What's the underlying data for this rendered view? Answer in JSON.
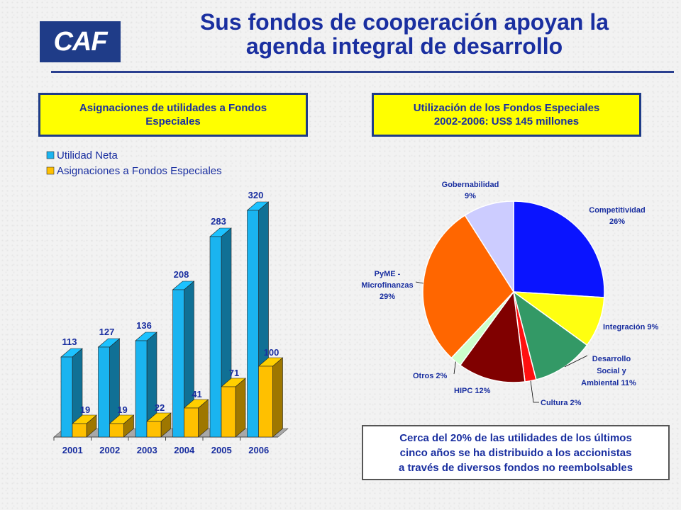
{
  "header": {
    "logo_text": "CAF",
    "title_line1": "Sus fondos de cooperación apoyan la",
    "title_line2": "agenda integral de desarrollo"
  },
  "left_panel": {
    "box_line1": "Asignaciones de utilidades a Fondos",
    "box_line2": "Especiales"
  },
  "right_panel": {
    "box_line1": "Utilización de los Fondos Especiales",
    "box_line2": "2002-2006: US$ 145 millones"
  },
  "note": {
    "line1": "Cerca del 20% de las utilidades de los últimos",
    "line2": "cinco años se ha distribuido a los accionistas",
    "line3": "a través de diversos fondos no reembolsables"
  },
  "chart_data": [
    {
      "type": "bar",
      "categories": [
        "2001",
        "2002",
        "2003",
        "2004",
        "2005",
        "2006"
      ],
      "series": [
        {
          "name": "Utilidad Neta",
          "values": [
            113,
            127,
            136,
            208,
            283,
            320
          ],
          "color": "#1ab4f0"
        },
        {
          "name": "Asignaciones a Fondos Especiales",
          "values": [
            19,
            19,
            22,
            41,
            71,
            100
          ],
          "color": "#ffc000"
        }
      ],
      "ylim": [
        0,
        340
      ],
      "legend": "top-left",
      "style": "3d"
    },
    {
      "type": "pie",
      "slices": [
        {
          "label": "Competitividad",
          "pct_text": "26%",
          "value": 26,
          "color": "#0a14ff"
        },
        {
          "label": "Integración 9%",
          "pct_text": "",
          "value": 9,
          "color": "#ffff10"
        },
        {
          "label": "Desarrollo",
          "label2": "Social y",
          "label3": "Ambiental 11%",
          "pct_text": "",
          "value": 11,
          "color": "#339966"
        },
        {
          "label": "Cultura 2%",
          "pct_text": "",
          "value": 2,
          "color": "#ff1010"
        },
        {
          "label": "HIPC 12%",
          "pct_text": "",
          "value": 12,
          "color": "#800000"
        },
        {
          "label": "Otros  2%",
          "pct_text": "",
          "value": 2,
          "color": "#ccffcc"
        },
        {
          "label": "PyME -",
          "label2": "Microfinanzas",
          "pct_text": "29%",
          "value": 29,
          "color": "#ff6600"
        },
        {
          "label": "Gobernabilidad",
          "pct_text": "9%",
          "value": 9,
          "color": "#ccccff"
        }
      ]
    }
  ]
}
